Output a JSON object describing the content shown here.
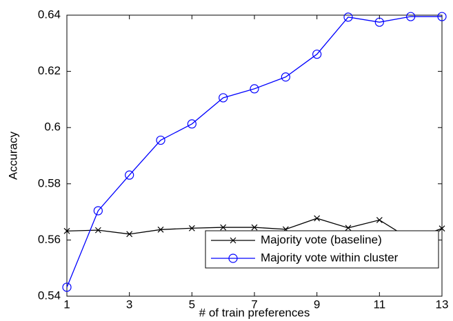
{
  "chart_data": {
    "type": "line",
    "x_label": "# of train preferences",
    "y_label": "Accuracy",
    "x": [
      1,
      2,
      3,
      4,
      5,
      6,
      7,
      8,
      9,
      10,
      11,
      12,
      13
    ],
    "series": [
      {
        "name": "Majority vote (baseline)",
        "color": "#000000",
        "marker": "x",
        "values": [
          0.5632,
          0.5635,
          0.5621,
          0.5637,
          0.5642,
          0.5645,
          0.5645,
          0.5638,
          0.5677,
          0.5643,
          0.5671,
          0.5602,
          0.5641
        ]
      },
      {
        "name": "Majority vote within cluster",
        "color": "#0000ff",
        "marker": "o",
        "values": [
          0.5432,
          0.5704,
          0.5831,
          0.5955,
          0.6013,
          0.6106,
          0.6138,
          0.618,
          0.6261,
          0.6393,
          0.6375,
          0.6395,
          0.6395
        ]
      }
    ],
    "xlim": [
      1,
      13
    ],
    "xticks": [
      1,
      3,
      5,
      7,
      9,
      11,
      13
    ],
    "ylim": [
      0.54,
      0.64
    ],
    "yticks": [
      0.54,
      0.56,
      0.58,
      0.6,
      0.62,
      0.64
    ],
    "grid": false,
    "legend": "lower right"
  }
}
